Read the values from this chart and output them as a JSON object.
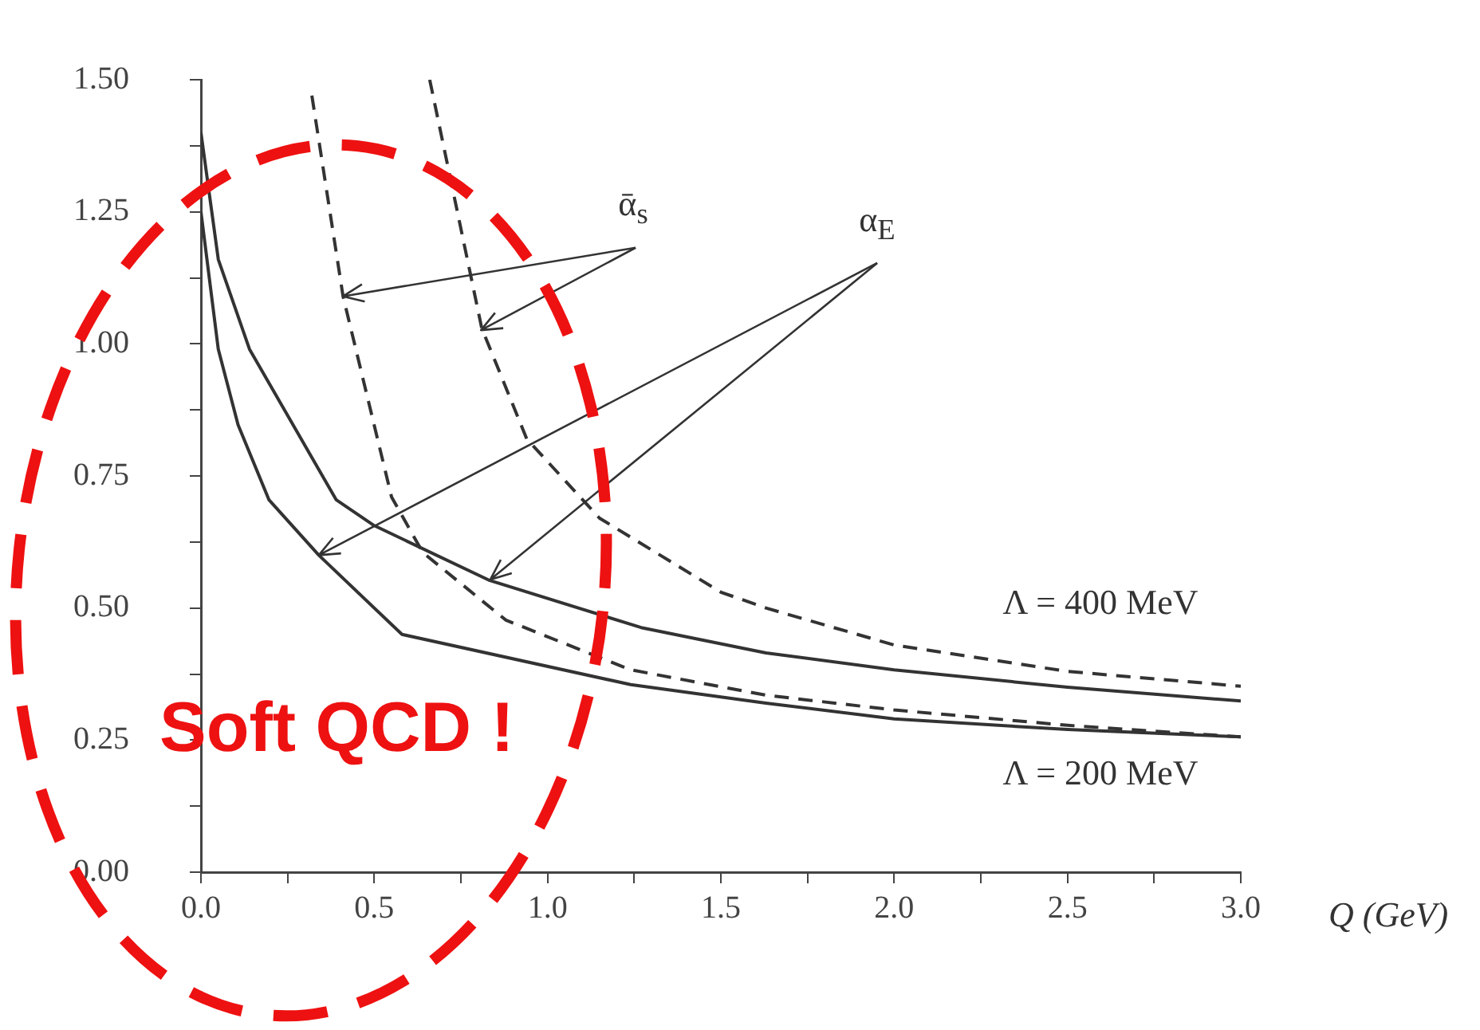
{
  "chart_data": {
    "type": "line",
    "xlabel": "Q (GeV)",
    "xlim": [
      0,
      3
    ],
    "ylim": [
      0,
      1.5
    ],
    "xticks": [
      {
        "value": 0,
        "label": "0.0"
      },
      {
        "value": 0.25,
        "label": null
      },
      {
        "value": 0.5,
        "label": "0.5"
      },
      {
        "value": 0.75,
        "label": null
      },
      {
        "value": 1,
        "label": "1.0"
      },
      {
        "value": 1.25,
        "label": null
      },
      {
        "value": 1.5,
        "label": "1.5"
      },
      {
        "value": 1.75,
        "label": null
      },
      {
        "value": 2,
        "label": "2.0"
      },
      {
        "value": 2.25,
        "label": null
      },
      {
        "value": 2.5,
        "label": "2.5"
      },
      {
        "value": 2.75,
        "label": null
      },
      {
        "value": 3,
        "label": "3.0"
      }
    ],
    "yticks": [
      {
        "value": 0,
        "label": "0.00"
      },
      {
        "value": 0.125,
        "label": null
      },
      {
        "value": 0.25,
        "label": "0.25"
      },
      {
        "value": 0.375,
        "label": null
      },
      {
        "value": 0.5,
        "label": "0.50"
      },
      {
        "value": 0.625,
        "label": null
      },
      {
        "value": 0.75,
        "label": "0.75"
      },
      {
        "value": 0.875,
        "label": null
      },
      {
        "value": 1,
        "label": "1.00"
      },
      {
        "value": 1.125,
        "label": null
      },
      {
        "value": 1.25,
        "label": "1.25"
      },
      {
        "value": 1.375,
        "label": null
      },
      {
        "value": 1.5,
        "label": "1.50"
      }
    ],
    "grid": false,
    "legend": false,
    "marker": "none",
    "series": [
      {
        "color": "#333333",
        "line_style": "solid",
        "x": [
          0,
          0.05,
          0.14,
          0.39,
          0.5,
          0.83,
          1.27,
          1.63,
          2.0,
          2.5,
          3.0
        ],
        "values": [
          1.4,
          1.16,
          0.99,
          0.705,
          0.656,
          0.553,
          0.463,
          0.415,
          0.383,
          0.35,
          0.324
        ]
      },
      {
        "color": "#333333",
        "line_style": "solid",
        "x": [
          0,
          0.05,
          0.107,
          0.196,
          0.34,
          0.58,
          1.24,
          1.63,
          2.0,
          2.5,
          3.0
        ],
        "values": [
          1.25,
          0.99,
          0.847,
          0.705,
          0.6,
          0.45,
          0.355,
          0.32,
          0.29,
          0.27,
          0.256
        ]
      },
      {
        "color": "#333333",
        "line_style": "dashed",
        "x": [
          0.66,
          0.81,
          0.94,
          1.15,
          1.5,
          1.63,
          2.0,
          2.5,
          3.0
        ],
        "values": [
          1.5,
          1.03,
          0.82,
          0.67,
          0.53,
          0.5,
          0.43,
          0.38,
          0.352
        ]
      },
      {
        "color": "#333333",
        "line_style": "dashed",
        "x": [
          0.32,
          0.41,
          0.55,
          0.64,
          0.88,
          1.24,
          1.63,
          2.0,
          2.5,
          3.0
        ],
        "values": [
          1.47,
          1.09,
          0.71,
          0.605,
          0.477,
          0.383,
          0.335,
          0.307,
          0.278,
          0.256
        ]
      }
    ],
    "annotations": [
      {
        "text": "ᾱ$_{s}$",
        "x": 0.41,
        "y": 1.09
      },
      {
        "text": "α$_{E}$",
        "x": 0.34,
        "y": 0.6
      },
      "Λ = 400 MeV",
      "Λ = 200 MeV",
      "Soft QCD !"
    ]
  }
}
